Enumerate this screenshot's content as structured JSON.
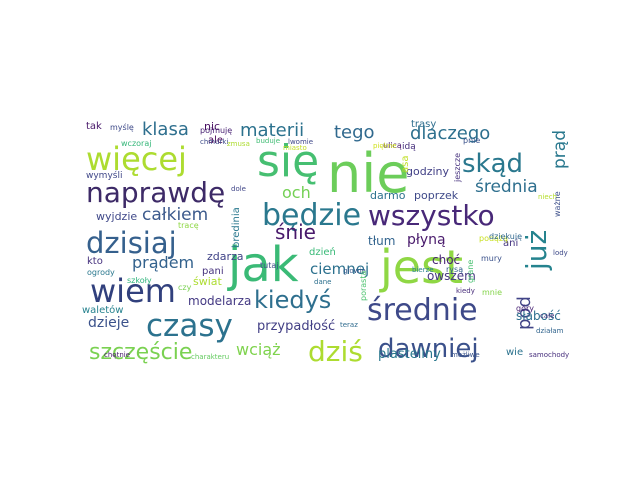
{
  "wordcloud": {
    "words": [
      {
        "text": "nie",
        "color": "#6ccd5a"
      },
      {
        "text": "się",
        "color": "#46bf71"
      },
      {
        "text": "jak",
        "color": "#3aba76"
      },
      {
        "text": "jest",
        "color": "#8fd744"
      },
      {
        "text": "więcej",
        "color": "#addc30"
      },
      {
        "text": "naprawdę",
        "color": "#3d2a67"
      },
      {
        "text": "będzie",
        "color": "#2a788e"
      },
      {
        "text": "wszystko",
        "color": "#482878"
      },
      {
        "text": "dzisiaj",
        "color": "#35608d"
      },
      {
        "text": "wiem",
        "color": "#31407d"
      },
      {
        "text": "czasy",
        "color": "#2c728e"
      },
      {
        "text": "średnie",
        "color": "#3e4989"
      },
      {
        "text": "dawniej",
        "color": "#3b518b"
      },
      {
        "text": "dziś",
        "color": "#addc30"
      },
      {
        "text": "już",
        "color": "#25838e"
      },
      {
        "text": "skąd",
        "color": "#2a788e"
      },
      {
        "text": "kiedyś",
        "color": "#2e6f8e"
      },
      {
        "text": "szczęście",
        "color": "#7ad151"
      },
      {
        "text": "klasa",
        "color": "#2e6f8e"
      },
      {
        "text": "materii",
        "color": "#2c728e"
      },
      {
        "text": "tego",
        "color": "#30698e"
      },
      {
        "text": "dlaczego",
        "color": "#2d708e"
      },
      {
        "text": "całkiem",
        "color": "#3c5a8c"
      },
      {
        "text": "średnia",
        "color": "#2e6f8e"
      },
      {
        "text": "prąd",
        "color": "#29788e"
      },
      {
        "text": "śnie",
        "color": "#48196b"
      },
      {
        "text": "och",
        "color": "#74d055"
      },
      {
        "text": "pod",
        "color": "#414487"
      },
      {
        "text": "prądem",
        "color": "#33628d"
      },
      {
        "text": "wciąż",
        "color": "#7fd34e"
      },
      {
        "text": "dzieje",
        "color": "#3b528b"
      },
      {
        "text": "ciemnej",
        "color": "#2c718e"
      },
      {
        "text": "przypadłość",
        "color": "#423f85"
      },
      {
        "text": "plasteliny",
        "color": "#2a788e"
      },
      {
        "text": "modelarza",
        "color": "#443983"
      },
      {
        "text": "słabość",
        "color": "#2e6f8e"
      },
      {
        "text": "wyjdzie",
        "color": "#3f4889"
      },
      {
        "text": "zdarza",
        "color": "#404387"
      },
      {
        "text": "tłum",
        "color": "#32648e"
      },
      {
        "text": "płyną",
        "color": "#48196b"
      },
      {
        "text": "godziny",
        "color": "#424086"
      },
      {
        "text": "darmo",
        "color": "#2c728e"
      },
      {
        "text": "poprzek",
        "color": "#3e4989"
      },
      {
        "text": "wymyśli",
        "color": "#3f4788"
      },
      {
        "text": "kto",
        "color": "#46327e"
      },
      {
        "text": "pani",
        "color": "#46327e"
      },
      {
        "text": "świat",
        "color": "#addc30"
      },
      {
        "text": "dzień",
        "color": "#38b977"
      },
      {
        "text": "owszem",
        "color": "#453781"
      },
      {
        "text": "choć",
        "color": "#482475"
      },
      {
        "text": "nic",
        "color": "#470e61"
      },
      {
        "text": "ale",
        "color": "#440154"
      },
      {
        "text": "tak",
        "color": "#48186a"
      },
      {
        "text": "myślę",
        "color": "#3e4a89"
      },
      {
        "text": "trasy",
        "color": "#2e6e8e"
      },
      {
        "text": "ulicą",
        "color": "#481769"
      },
      {
        "text": "idą",
        "color": "#462f7c"
      },
      {
        "text": "ani",
        "color": "#453581"
      },
      {
        "text": "wie",
        "color": "#2c738e"
      },
      {
        "text": "waletów",
        "color": "#26828e"
      },
      {
        "text": "bredinia",
        "color": "#2a788e"
      },
      {
        "text": "asa",
        "color": "#c0df25"
      },
      {
        "text": "jeszcze",
        "color": "#46327e"
      },
      {
        "text": "pnie",
        "color": "#3b528b"
      },
      {
        "text": "niech",
        "color": "#b5de2b"
      },
      {
        "text": "pojmuję",
        "color": "#482173"
      },
      {
        "text": "chmurki",
        "color": "#3e4c8a"
      },
      {
        "text": "wczoraj",
        "color": "#35b779"
      },
      {
        "text": "zmusa",
        "color": "#addc30"
      },
      {
        "text": "buduje",
        "color": "#3fbc73"
      },
      {
        "text": "lwomie",
        "color": "#3f4889"
      },
      {
        "text": "miasto",
        "color": "#c2df23"
      },
      {
        "text": "piękne",
        "color": "#d0e11c"
      },
      {
        "text": "dole",
        "color": "#404688"
      },
      {
        "text": "tracę",
        "color": "#8fd744"
      },
      {
        "text": "tutaj",
        "color": "#3e4c8a"
      },
      {
        "text": "szkoły",
        "color": "#2fb47c"
      },
      {
        "text": "czy",
        "color": "#7ad151"
      },
      {
        "text": "ogrody",
        "color": "#2a788e"
      },
      {
        "text": "głowie",
        "color": "#38598c"
      },
      {
        "text": "dane",
        "color": "#2d708e"
      },
      {
        "text": "porasta",
        "color": "#4ac16d"
      },
      {
        "text": "teraz",
        "color": "#2f6b8e"
      },
      {
        "text": "bierze",
        "color": "#277f8e"
      },
      {
        "text": "rysą",
        "color": "#34618d"
      },
      {
        "text": "podążą",
        "color": "#c8e020"
      },
      {
        "text": "dziękuję",
        "color": "#31688e"
      },
      {
        "text": "grane",
        "color": "#46c06f"
      },
      {
        "text": "mury",
        "color": "#3b528b"
      },
      {
        "text": "lody",
        "color": "#3e4a89"
      },
      {
        "text": "mnie",
        "color": "#84d44b"
      },
      {
        "text": "kiedy",
        "color": "#472c7a"
      },
      {
        "text": "góry",
        "color": "#482374"
      },
      {
        "text": "całe",
        "color": "#45337d"
      },
      {
        "text": "działam",
        "color": "#32658e"
      },
      {
        "text": "możliwe",
        "color": "#3a548c"
      },
      {
        "text": "samochody",
        "color": "#472f7d"
      },
      {
        "text": "charakteru",
        "color": "#63cb5f"
      },
      {
        "text": "chętnie",
        "color": "#481b6d"
      },
      {
        "text": "ważne",
        "color": "#3c4f8a"
      }
    ]
  }
}
